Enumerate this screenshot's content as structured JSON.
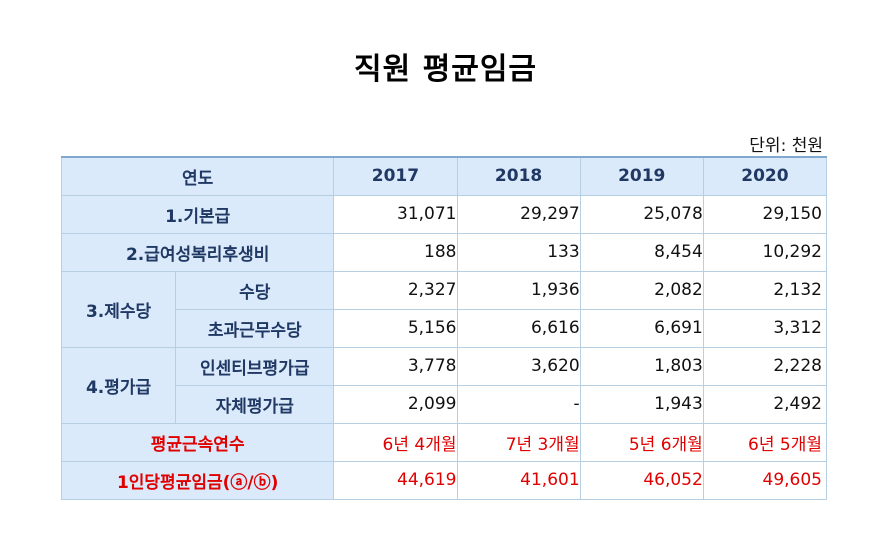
{
  "title": "직원 평균임금",
  "unit": "단위: 천원",
  "header": {
    "label": "연도",
    "years": [
      "2017",
      "2018",
      "2019",
      "2020"
    ]
  },
  "rows": {
    "basic": {
      "label": "1.기본급",
      "values": [
        "31,071",
        "29,297",
        "25,078",
        "29,150"
      ]
    },
    "welfare": {
      "label": "2.급여성복리후생비",
      "values": [
        "188",
        "133",
        "8,454",
        "10,292"
      ]
    },
    "allowance": {
      "label": "3.제수당",
      "sub": [
        {
          "label": "수당",
          "values": [
            "2,327",
            "1,936",
            "2,082",
            "2,132"
          ]
        },
        {
          "label": "초과근무수당",
          "values": [
            "5,156",
            "6,616",
            "6,691",
            "3,312"
          ]
        }
      ]
    },
    "evaluation": {
      "label": "4.평가급",
      "sub": [
        {
          "label": "인센티브평가급",
          "values": [
            "3,778",
            "3,620",
            "1,803",
            "2,228"
          ]
        },
        {
          "label": "자체평가급",
          "values": [
            "2,099",
            "-",
            "1,943",
            "2,492"
          ]
        }
      ]
    },
    "tenure": {
      "label": "평균근속연수",
      "values": [
        "6년 4개월",
        "7년 3개월",
        "5년 6개월",
        "6년 5개월"
      ]
    },
    "per_person": {
      "label": "1인당평균임금(ⓐ/ⓑ)",
      "values": [
        "44,619",
        "41,601",
        "46,052",
        "49,605"
      ]
    }
  },
  "colors": {
    "header_bg": "#dbeafa",
    "header_text": "#1f3864",
    "emphasis": "#e00000",
    "border": "#b7cfe3"
  }
}
